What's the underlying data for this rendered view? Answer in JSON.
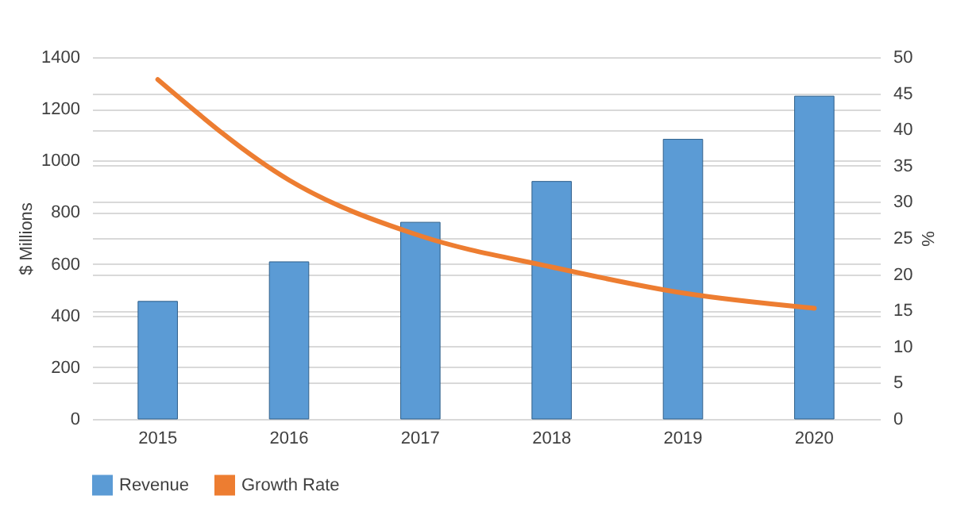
{
  "chart_data": {
    "type": "bar",
    "categories": [
      "2015",
      "2016",
      "2017",
      "2018",
      "2019",
      "2020"
    ],
    "series": [
      {
        "name": "Revenue",
        "color": "#5b9bd5",
        "values": [
          455,
          608,
          761,
          919,
          1082,
          1249
        ]
      },
      {
        "name": "Growth Rate",
        "type": "line",
        "axis": "y2",
        "color": "#ed7d31",
        "values": [
          46.9,
          33.0,
          25.3,
          21.0,
          17.4,
          15.3
        ]
      }
    ],
    "ylabel": "$ Millions",
    "y2label": "%",
    "ylim": [
      0,
      1400
    ],
    "yticks": [
      0,
      200,
      400,
      600,
      800,
      1000,
      1200,
      1400
    ],
    "y2lim": [
      0,
      50
    ],
    "y2ticks": [
      0,
      5,
      10,
      15,
      20,
      25,
      30,
      35,
      40,
      45,
      50
    ],
    "grid": "y",
    "legend": "bottom"
  }
}
